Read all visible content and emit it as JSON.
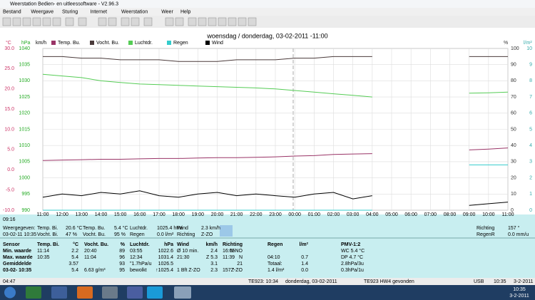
{
  "window": {
    "title": "Weerstation Bedien- en uitleessoftware - V2.96.3",
    "menu": [
      "Bestand",
      "Weergave",
      "Sturing",
      "Internet",
      "Weerstation",
      "Weer",
      "Help"
    ]
  },
  "chart_data": {
    "type": "line",
    "title": "woensdag / donderdag, 03-02-2011 -11:00",
    "axis_units": [
      "°C",
      "hPa",
      "km/h",
      "%",
      "l/m²"
    ],
    "categories": [
      "11:00",
      "12:00",
      "13:00",
      "14:00",
      "15:00",
      "16:00",
      "17:00",
      "18:00",
      "19:00",
      "20:00",
      "21:00",
      "22:00",
      "23:00",
      "00:00",
      "01:00",
      "02:00",
      "03:00",
      "04:00",
      "05:00",
      "06:00",
      "07:00",
      "08:00",
      "09:00",
      "10:00",
      "11:00"
    ],
    "series": [
      {
        "name": "Temp. Bu.",
        "color": "#993366",
        "axis": "y",
        "values": [
          2.3,
          2.4,
          2.5,
          2.6,
          2.6,
          2.7,
          2.8,
          2.8,
          2.9,
          3.0,
          3.0,
          3.1,
          3.2,
          3.4,
          3.5,
          3.8,
          3.9,
          4.0,
          null,
          null,
          null,
          null,
          4.9,
          5.1,
          5.4
        ]
      },
      {
        "name": "Vocht. Bu.",
        "color": "#4a3a3a",
        "axis": "y4",
        "values": [
          95,
          95,
          94,
          94,
          93,
          93,
          93,
          92,
          92,
          92,
          93,
          93,
          93,
          94,
          94,
          95,
          95,
          95,
          null,
          null,
          null,
          null,
          95,
          95,
          95
        ]
      },
      {
        "name": "Luchtdr.",
        "color": "#55cc55",
        "axis": "y2",
        "values": [
          1032,
          1031.5,
          1031,
          1030,
          1029.5,
          1029,
          1028.8,
          1028.6,
          1028.4,
          1028.2,
          1028,
          1027.8,
          1027.5,
          1027,
          1026.5,
          1026,
          1025.5,
          1025,
          null,
          null,
          null,
          null,
          1026.2,
          1026.3,
          1026.5
        ]
      },
      {
        "name": "Regen",
        "color": "#33cccc",
        "axis": "y5",
        "values": [
          0,
          0,
          0,
          0,
          0,
          0,
          0,
          0,
          0,
          0,
          0,
          0,
          0,
          0,
          0,
          0,
          0,
          0,
          null,
          null,
          null,
          null,
          2.8,
          2.8,
          2.8
        ]
      },
      {
        "name": "Wind",
        "color": "#000000",
        "axis": "y3",
        "values": [
          8,
          10,
          9,
          11,
          10,
          12,
          9,
          8,
          10,
          11,
          9,
          10,
          9,
          8,
          10,
          11,
          7,
          9,
          null,
          null,
          null,
          null,
          3,
          4,
          5
        ]
      }
    ],
    "ylim": [
      -10,
      30
    ],
    "yticks": [
      {
        "value": -10,
        "label": "-10.0"
      },
      {
        "value": -5,
        "label": "-5.0"
      },
      {
        "value": 0,
        "label": "0.0"
      },
      {
        "value": 5,
        "label": "5.0"
      },
      {
        "value": 10,
        "label": "10.0"
      },
      {
        "value": 15,
        "label": "15.0"
      },
      {
        "value": 20,
        "label": "20.0"
      },
      {
        "value": 25,
        "label": "25.0"
      },
      {
        "value": 30,
        "label": "30.0"
      }
    ],
    "y2lim": [
      990,
      1040
    ],
    "y2ticks": [
      990,
      995,
      1000,
      1005,
      1010,
      1015,
      1020,
      1025,
      1030,
      1035,
      1040
    ],
    "y3lim": [
      0,
      100
    ],
    "y4lim": [
      0,
      100
    ],
    "y4ticks": [
      0,
      10,
      20,
      30,
      40,
      50,
      60,
      70,
      80,
      90,
      100
    ],
    "y5lim": [
      0,
      10
    ],
    "y5ticks": [
      0,
      1,
      2,
      3,
      4,
      5,
      6,
      7,
      8,
      9,
      10
    ],
    "grid": true,
    "start_label": "09:16"
  },
  "info_rows": [
    [
      "Weergegeven:",
      "Temp. Bi.",
      "20.6 °C",
      "Temp. Bu.",
      "5.4 °C",
      "Luchtdr.",
      "1025.4 hPa",
      "Wind",
      "2.3 km/h",
      "Richting",
      "157 °"
    ],
    [
      "03-02-11 10:35",
      "Vocht. Bi.",
      "47 %",
      "Vocht. Bu.",
      "95 %",
      "Regen",
      "0.0 l/m²",
      "Richting",
      "Z-ZO",
      "RegenR",
      "0.0 mm/u"
    ]
  ],
  "stats": {
    "rows": [
      [
        "Sensor",
        "Temp. Bi.",
        "°C",
        "Vocht. Bu.",
        "%",
        "Luchtdr.",
        "hPa",
        "Wind",
        "km/h",
        "Richting",
        null,
        "Regen",
        "l/m²",
        "PMV-1:2"
      ],
      [
        "Min. waarde",
        "11:14",
        "2.2",
        "20:40",
        "89",
        "03:55",
        "1022.6",
        "Ø 10 min.",
        "2.4",
        "16:05",
        "N-NO",
        null,
        null,
        "WC 5.4 °C"
      ],
      [
        "Max. waarde",
        "10:35",
        "5.4",
        "11:04",
        "96",
        "12:34",
        "1031.4",
        "21:30",
        "Z 5.3",
        "11:39",
        "N",
        "04:10",
        "0.7",
        "DP 4.7 °C"
      ],
      [
        "Gemiddelde",
        null,
        "3.57",
        null,
        "93",
        "\"1.7hPa/u",
        "1026.5",
        null,
        "3.1",
        null,
        "21",
        "Totaal:",
        "1.4",
        "2.8hPa/3u"
      ],
      [
        "03-02- 10:35",
        null,
        "5.4",
        "6.63 g/m³",
        "95",
        "bewolkt",
        "↑1025.4",
        "1 Bft Z-ZO",
        "2.3",
        "157 °",
        "Z-ZO",
        "1.4 l/m²",
        "0.0",
        "0.3hPa/1u"
      ]
    ]
  },
  "status": [
    "04:47",
    "TE923: 10:34",
    "donderdag, 03-02-2011",
    "TE923 HW4 gevonden",
    "USB",
    "10:35",
    "3-2-2011"
  ],
  "taskbar": {
    "time": "10:35",
    "date": "3-2-2011"
  }
}
